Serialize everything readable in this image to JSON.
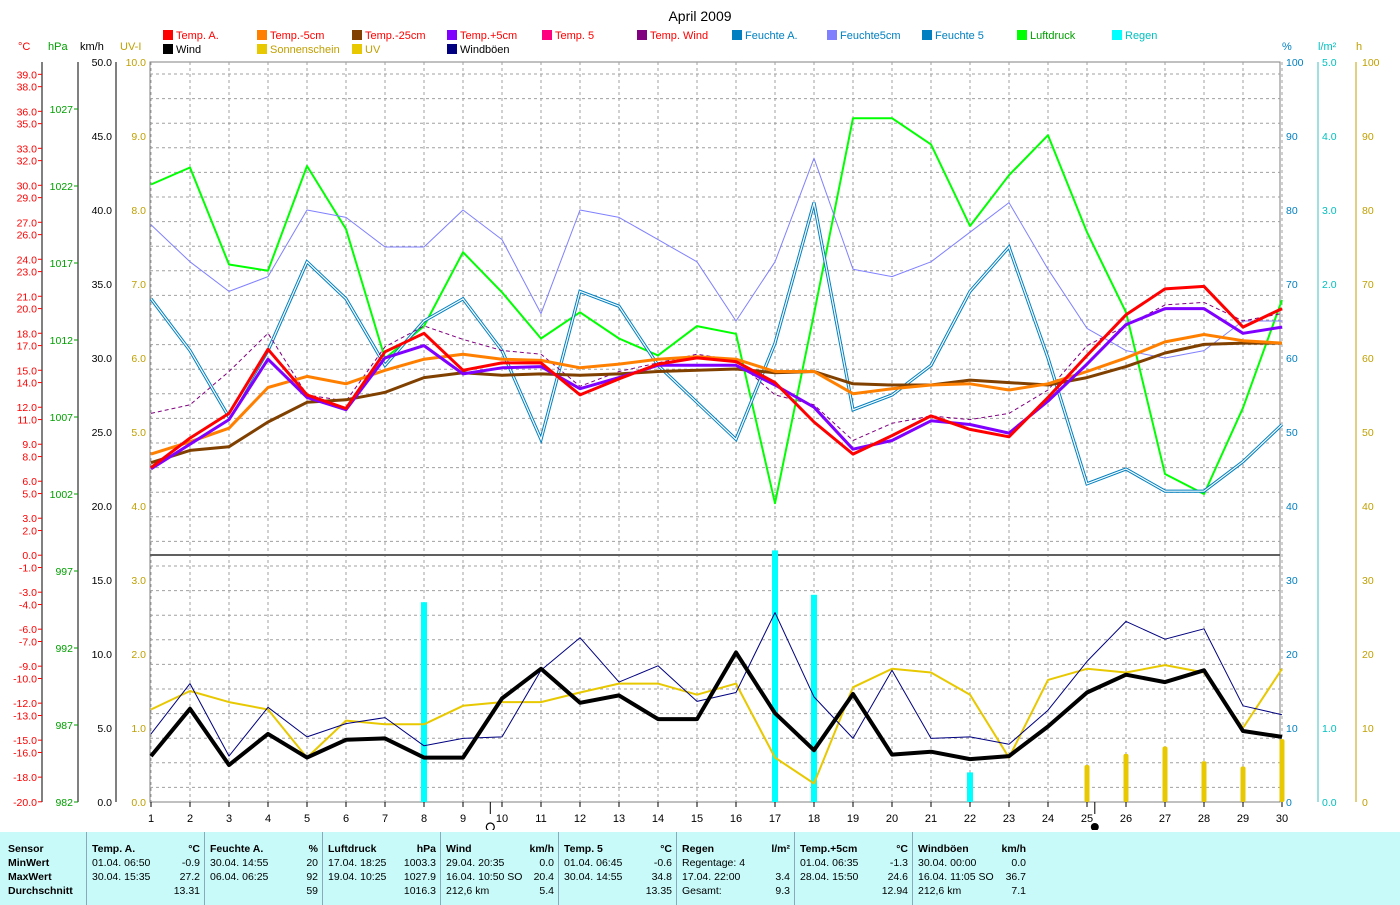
{
  "chart_data": {
    "type": "line",
    "title": "April 2009",
    "x": [
      1,
      2,
      3,
      4,
      5,
      6,
      7,
      8,
      9,
      10,
      11,
      12,
      13,
      14,
      15,
      16,
      17,
      18,
      19,
      20,
      21,
      22,
      23,
      24,
      25,
      26,
      27,
      28,
      29,
      30
    ],
    "xlim": [
      1,
      30
    ],
    "axes": {
      "temp_c": {
        "label": "°C",
        "ticks": [
          "39.0",
          "38.0",
          "36.0",
          "35.0",
          "33.0",
          "32.0",
          "30.0",
          "29.0",
          "27.0",
          "26.0",
          "24.0",
          "23.0",
          "21.0",
          "20.0",
          "18.0",
          "17.0",
          "15.0",
          "14.0",
          "12.0",
          "11.0",
          "9.0",
          "8.0",
          "6.0",
          "5.0",
          "3.0",
          "2.0",
          "0.0",
          "-1.0",
          "-3.0",
          "-4.0",
          "-6.0",
          "-7.0",
          "-9.0",
          "-10.0",
          "-12.0",
          "-13.0",
          "-15.0",
          "-16.0",
          "-18.0",
          "-20.0"
        ]
      },
      "press_hpa": {
        "label": "hPa",
        "ticks": [
          "1027",
          "1022",
          "1017",
          "1012",
          "1007",
          "1002",
          "997",
          "992",
          "987",
          "982"
        ]
      },
      "wind_kmh": {
        "label": "km/h",
        "ticks_top": [
          "50.0",
          "45.0",
          "40.0",
          "35.0",
          "30.0",
          "25.0",
          "20.0"
        ],
        "ticks_bottom": [
          "15.0",
          "10.0",
          "5.0",
          "0.0"
        ]
      },
      "uv": {
        "label": "UV-I",
        "ticks_top": [
          "10.0",
          "9.0",
          "8.0",
          "7.0",
          "6.0",
          "5.0",
          "4.0"
        ],
        "ticks_bottom": [
          "3.0",
          "2.0",
          "1.0",
          "0.0"
        ]
      },
      "humidity_pct": {
        "label": "%",
        "ticks_top": [
          "100",
          "90",
          "80",
          "70",
          "60",
          "50",
          "40"
        ],
        "ticks_bottom": [
          "30",
          "20",
          "10",
          "0"
        ]
      },
      "rain_lm2": {
        "label": "l/m²",
        "ticks_top": [
          "5.0",
          "4.0",
          "3.0",
          "2.0"
        ],
        "ticks_bottom": [
          "1.0",
          "0.0"
        ]
      },
      "sun_h": {
        "label": "h",
        "ticks_top": [
          "100",
          "90",
          "80",
          "70",
          "60",
          "50",
          "40"
        ],
        "ticks_bottom": [
          "30",
          "20",
          "10",
          "0"
        ]
      }
    },
    "legend": [
      {
        "name": "Temp. A.",
        "color": "#ff0000"
      },
      {
        "name": "Temp.-5cm",
        "color": "#ff8000"
      },
      {
        "name": "Temp.-25cm",
        "color": "#804000"
      },
      {
        "name": "Temp.+5cm",
        "color": "#8000ff"
      },
      {
        "name": "Temp. 5",
        "color": "#ff0080"
      },
      {
        "name": "Temp. Wind",
        "color": "#800080"
      },
      {
        "name": "Feuchte A.",
        "color": "#0080c0"
      },
      {
        "name": "Feuchte5cm",
        "color": "#8080ff"
      },
      {
        "name": "Feuchte 5",
        "color": "#0080c0"
      },
      {
        "name": "Luftdruck",
        "color": "#00ff00"
      },
      {
        "name": "Regen",
        "color": "#00ffff"
      },
      {
        "name": "Wind",
        "color": "#000000"
      },
      {
        "name": "Sonnenschein",
        "color": "#e8c800"
      },
      {
        "name": "UV",
        "color": "#e8c800"
      },
      {
        "name": "Windböen",
        "color": "#000080"
      }
    ],
    "series": [
      {
        "name": "Luftdruck",
        "axis": "hPa",
        "color": "#00ff00",
        "width": 2,
        "values": [
          1022.1,
          1023.2,
          1016.9,
          1016.5,
          1023.3,
          1019.2,
          1010.8,
          1012.9,
          1017.7,
          1015.1,
          1012.1,
          1013.8,
          1012.1,
          1011.0,
          1012.9,
          1012.4,
          1001.4,
          1013.7,
          1026.4,
          1026.4,
          1024.7,
          1019.4,
          1022.7,
          1025.3,
          1019.0,
          1013.8,
          1003.3,
          1002.0,
          1007.6,
          1014.6
        ]
      },
      {
        "name": "Feuchte5cm",
        "axis": "%",
        "color": "#8080ff",
        "width": 1,
        "values": [
          78,
          73,
          69,
          71,
          80,
          79,
          75,
          75,
          80,
          76,
          66,
          80,
          79,
          76,
          73,
          65,
          73,
          87,
          72,
          71,
          73,
          77,
          81,
          72,
          64,
          61,
          60,
          61,
          65,
          65
        ]
      },
      {
        "name": "Feuchte A.",
        "axis": "%",
        "color": "#0080c0",
        "width": 1,
        "double": true,
        "values": [
          68,
          61,
          52,
          61,
          73,
          68,
          59,
          65,
          68,
          61,
          49,
          69,
          67,
          59,
          54,
          49,
          62,
          81,
          53,
          55,
          59,
          69,
          75,
          60,
          43,
          45,
          42,
          42,
          46,
          51
        ]
      },
      {
        "name": "Temp. Wind",
        "axis": "°C",
        "color": "#800080",
        "width": 1,
        "dash": true,
        "values": [
          11.5,
          12.2,
          14.9,
          18.0,
          13.0,
          12.5,
          16.9,
          18.6,
          17.5,
          16.6,
          16.3,
          13.7,
          14.9,
          15.6,
          16.3,
          15.8,
          13.0,
          12.2,
          9.3,
          10.7,
          11.3,
          11.0,
          11.5,
          13.4,
          17.0,
          18.6,
          20.3,
          20.5,
          19.0,
          19.6
        ]
      },
      {
        "name": "Temp.-25cm",
        "axis": "°C",
        "color": "#804000",
        "width": 3,
        "values": [
          7.5,
          8.5,
          8.8,
          10.8,
          12.4,
          12.6,
          13.2,
          14.4,
          14.8,
          14.6,
          14.7,
          14.6,
          14.7,
          14.9,
          15.0,
          15.1,
          14.8,
          14.9,
          13.9,
          13.8,
          13.8,
          14.2,
          14.0,
          13.8,
          14.4,
          15.3,
          16.4,
          17.1,
          17.2,
          17.2
        ]
      },
      {
        "name": "Temp.-5cm",
        "axis": "°C",
        "color": "#ff8000",
        "width": 3,
        "values": [
          8.2,
          9.2,
          10.3,
          13.6,
          14.5,
          13.9,
          15.0,
          15.9,
          16.3,
          15.9,
          15.8,
          15.2,
          15.5,
          15.9,
          16.1,
          15.9,
          14.9,
          14.9,
          13.1,
          13.5,
          13.8,
          13.9,
          13.4,
          13.9,
          14.9,
          16.0,
          17.3,
          17.9,
          17.4,
          17.2
        ]
      },
      {
        "name": "Temp.+5cm",
        "axis": "°C",
        "color": "#8000ff",
        "width": 3,
        "values": [
          7.0,
          9.0,
          11.0,
          15.9,
          12.8,
          11.8,
          16.0,
          17.0,
          14.7,
          15.2,
          15.3,
          13.5,
          14.4,
          15.4,
          15.4,
          15.4,
          13.8,
          12.0,
          8.6,
          9.3,
          10.9,
          10.6,
          9.9,
          12.5,
          15.5,
          18.7,
          20.0,
          20.0,
          18.0,
          18.5
        ]
      },
      {
        "name": "Temp. A.",
        "axis": "°C",
        "color": "#ff0000",
        "width": 3,
        "values": [
          7.1,
          9.5,
          11.5,
          16.7,
          13.0,
          11.9,
          16.5,
          18.0,
          15.0,
          15.6,
          15.6,
          13.0,
          14.3,
          15.5,
          16.0,
          15.7,
          14.0,
          10.8,
          8.2,
          9.7,
          11.3,
          10.2,
          9.6,
          12.8,
          16.2,
          19.5,
          21.6,
          21.8,
          18.5,
          20.0
        ]
      },
      {
        "name": "Sonnenschein",
        "axis": "h",
        "color": "#e8c800",
        "width": 2,
        "values": [
          12.5,
          15,
          13.5,
          12.5,
          6,
          11,
          10.5,
          10.5,
          13,
          13.5,
          13.5,
          14.8,
          16,
          16,
          14.5,
          16,
          6,
          2.5,
          15.5,
          18,
          17.5,
          14.5,
          6,
          16.5,
          18,
          17.5,
          18.5,
          17.5,
          10,
          18
        ]
      },
      {
        "name": "Windböen",
        "axis": "km/h",
        "color": "#000080",
        "width": 1,
        "values": [
          4.6,
          8.0,
          3.1,
          6.4,
          4.4,
          5.3,
          5.7,
          3.8,
          4.3,
          4.4,
          8.9,
          11.1,
          8.1,
          9.2,
          6.8,
          7.4,
          12.8,
          7.1,
          4.3,
          8.9,
          4.3,
          4.4,
          3.9,
          6.2,
          9.5,
          12.2,
          11.0,
          11.7,
          6.5,
          5.9
        ]
      },
      {
        "name": "Wind",
        "axis": "km/h",
        "color": "#000000",
        "width": 4,
        "values": [
          3.1,
          6.3,
          2.5,
          4.6,
          3.0,
          4.2,
          4.3,
          3.0,
          3.0,
          7.0,
          9.0,
          6.7,
          7.2,
          5.6,
          5.6,
          10.1,
          6.0,
          3.5,
          7.3,
          3.2,
          3.4,
          2.9,
          3.1,
          5.1,
          7.4,
          8.6,
          8.1,
          8.9,
          4.8,
          4.4
        ]
      }
    ],
    "rain_bars": {
      "name": "Regen",
      "axis": "l/m²",
      "color": "#00ffff",
      "days": [
        8,
        17,
        18,
        22
      ],
      "values": [
        2.7,
        3.4,
        2.8,
        0.4
      ]
    },
    "uv_bars": {
      "name": "UV",
      "axis": "UV-I",
      "color": "#e8c800",
      "days": [
        25,
        26,
        27,
        28,
        29,
        30
      ],
      "values": [
        0.5,
        0.65,
        0.75,
        0.55,
        0.48,
        0.85
      ]
    },
    "moon_markers": [
      {
        "day": 9.7,
        "phase": "waxing"
      },
      {
        "day": 25.2,
        "phase": "new"
      }
    ]
  },
  "stats": {
    "columns": [
      {
        "sensor": "Sensor",
        "rows": [
          "MinWert",
          "MaxWert",
          "Durchschnitt"
        ]
      },
      {
        "name": "Temp. A.",
        "unit": "°C",
        "min_time": "01.04.  06:50",
        "min": "-0.9",
        "max_time": "30.04.  15:35",
        "max": "27.2",
        "avg_label": "",
        "avg": "13.31"
      },
      {
        "name": "Feuchte A.",
        "unit": "%",
        "min_time": "30.04.  14:55",
        "min": "20",
        "max_time": "06.04.  06:25",
        "max": "92",
        "avg_label": "",
        "avg": "59"
      },
      {
        "name": "Luftdruck",
        "unit": "hPa",
        "min_time": "17.04.  18:25",
        "min": "1003.3",
        "max_time": "19.04.  10:25",
        "max": "1027.9",
        "avg_label": "",
        "avg": "1016.3"
      },
      {
        "name": "Wind",
        "unit": "km/h",
        "min_time": "29.04.  20:35",
        "min": "0.0",
        "max_time": "16.04.  10:50 SO",
        "max": "20.4",
        "avg_label": "212,6 km",
        "avg": "5.4"
      },
      {
        "name": "Temp. 5",
        "unit": "°C",
        "min_time": "01.04.  06:45",
        "min": "-0.6",
        "max_time": "30.04.  14:55",
        "max": "34.8",
        "avg_label": "",
        "avg": "13.35"
      },
      {
        "name": "Regen",
        "unit": "l/m²",
        "min_time": "Regentage: 4",
        "min": "",
        "max_time": "17.04.  22:00",
        "max": "3.4",
        "avg_label": "Gesamt:",
        "avg": "9.3"
      },
      {
        "name": "Temp.+5cm",
        "unit": "°C",
        "min_time": "01.04.  06:35",
        "min": "-1.3",
        "max_time": "28.04.  15:50",
        "max": "24.6",
        "avg_label": "",
        "avg": "12.94"
      },
      {
        "name": "Windböen",
        "unit": "km/h",
        "min_time": "30.04.  00:00",
        "min": "0.0",
        "max_time": "16.04.  11:05 SO",
        "max": "36.7",
        "avg_label": "212,6 km",
        "avg": "7.1"
      }
    ]
  }
}
